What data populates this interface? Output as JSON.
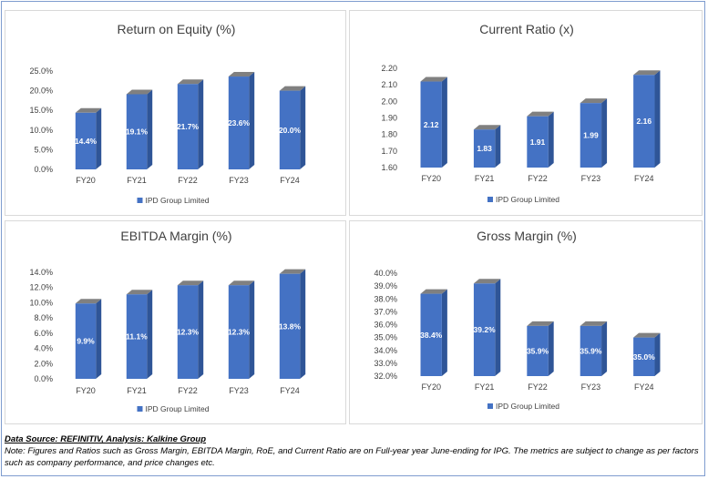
{
  "footer": {
    "source": "Data Source: REFINITIV, Analysis: Kalkine Group",
    "note": "Note: Figures and Ratios such as  Gross Margin, EBITDA Margin, RoE, and Current Ratio are on Full-year year June-ending for IPG. The metrics are subject to change as per factors such as company performance, and price changes etc."
  },
  "colors": {
    "bar_front": "#4472c4",
    "bar_side": "#2f5597",
    "bar_top": "#808080"
  },
  "chart_data": [
    {
      "type": "bar",
      "title": "Return on Equity (%)",
      "categories": [
        "FY20",
        "FY21",
        "FY22",
        "FY23",
        "FY24"
      ],
      "series": [
        {
          "name": "IPD Group Limited",
          "values": [
            14.4,
            19.1,
            21.7,
            23.6,
            20.0
          ]
        }
      ],
      "labels": [
        "14.4%",
        "19.1%",
        "21.7%",
        "23.6%",
        "20.0%"
      ],
      "ylim": [
        0,
        25
      ],
      "yticks": [
        0,
        5,
        10,
        15,
        20,
        25
      ],
      "ytick_labels": [
        "0.0%",
        "5.0%",
        "10.0%",
        "15.0%",
        "20.0%",
        "25.0%"
      ],
      "legend": "bottom"
    },
    {
      "type": "bar",
      "title": "Current Ratio (x)",
      "categories": [
        "FY20",
        "FY21",
        "FY22",
        "FY23",
        "FY24"
      ],
      "series": [
        {
          "name": "IPD Group Limited",
          "values": [
            2.12,
            1.83,
            1.91,
            1.99,
            2.16
          ]
        }
      ],
      "labels": [
        "2.12",
        "1.83",
        "1.91",
        "1.99",
        "2.16"
      ],
      "ylim": [
        1.6,
        2.2
      ],
      "yticks": [
        1.6,
        1.7,
        1.8,
        1.9,
        2.0,
        2.1,
        2.2
      ],
      "ytick_labels": [
        "1.60",
        "1.70",
        "1.80",
        "1.90",
        "2.00",
        "2.10",
        "2.20"
      ],
      "legend": "bottom"
    },
    {
      "type": "bar",
      "title": "EBITDA Margin (%)",
      "categories": [
        "FY20",
        "FY21",
        "FY22",
        "FY23",
        "FY24"
      ],
      "series": [
        {
          "name": "IPD Group Limited",
          "values": [
            9.9,
            11.1,
            12.3,
            12.3,
            13.8
          ]
        }
      ],
      "labels": [
        "9.9%",
        "11.1%",
        "12.3%",
        "12.3%",
        "13.8%"
      ],
      "ylim": [
        0,
        14
      ],
      "yticks": [
        0,
        2,
        4,
        6,
        8,
        10,
        12,
        14
      ],
      "ytick_labels": [
        "0.0%",
        "2.0%",
        "4.0%",
        "6.0%",
        "8.0%",
        "10.0%",
        "12.0%",
        "14.0%"
      ],
      "legend": "bottom"
    },
    {
      "type": "bar",
      "title": "Gross Margin (%)",
      "categories": [
        "FY20",
        "FY21",
        "FY22",
        "FY23",
        "FY24"
      ],
      "series": [
        {
          "name": "IPD Group Limited",
          "values": [
            38.4,
            39.2,
            35.9,
            35.9,
            35.0
          ]
        }
      ],
      "labels": [
        "38.4%",
        "39.2%",
        "35.9%",
        "35.9%",
        "35.0%"
      ],
      "ylim": [
        32,
        40
      ],
      "yticks": [
        32,
        33,
        34,
        35,
        36,
        37,
        38,
        39,
        40
      ],
      "ytick_labels": [
        "32.0%",
        "33.0%",
        "34.0%",
        "35.0%",
        "36.0%",
        "37.0%",
        "38.0%",
        "39.0%",
        "40.0%"
      ],
      "legend": "bottom"
    }
  ]
}
